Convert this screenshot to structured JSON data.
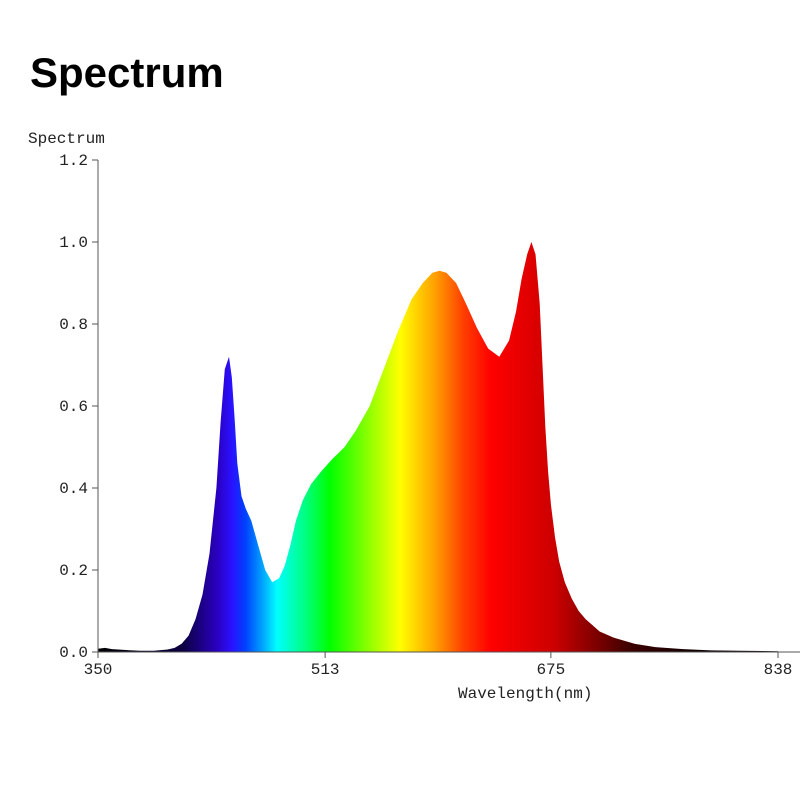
{
  "page": {
    "title": "Spectrum"
  },
  "chart_data": {
    "type": "area",
    "ylabel": "Spectrum",
    "xlabel": "Wavelength(nm)",
    "xlim": [
      350,
      838
    ],
    "ylim": [
      0,
      1.2
    ],
    "x_ticks": [
      "350",
      "513",
      "675",
      "838"
    ],
    "y_ticks": [
      "0.0",
      "0.2",
      "0.4",
      "0.6",
      "0.8",
      "1.0",
      "1.2"
    ],
    "fill": "visible-spectrum gradient",
    "series": [
      {
        "x": [
          350,
          355,
          360,
          370,
          380,
          390,
          400,
          405,
          410,
          415,
          420,
          425,
          430,
          435,
          438,
          441,
          444,
          446,
          448,
          450,
          453,
          456,
          460,
          465,
          470,
          475,
          480,
          484,
          488,
          492,
          497,
          503,
          510,
          518,
          527,
          535,
          545,
          555,
          565,
          575,
          583,
          590,
          595,
          600,
          607,
          614,
          622,
          630,
          638,
          645,
          650,
          654,
          658,
          661,
          664,
          667,
          669,
          671,
          673,
          675,
          678,
          681,
          685,
          690,
          695,
          700,
          705,
          710,
          720,
          735,
          750,
          770,
          790,
          810,
          838
        ],
        "y": [
          0.008,
          0.01,
          0.007,
          0.005,
          0.003,
          0.003,
          0.006,
          0.01,
          0.02,
          0.04,
          0.08,
          0.14,
          0.24,
          0.4,
          0.56,
          0.69,
          0.72,
          0.67,
          0.57,
          0.46,
          0.38,
          0.35,
          0.32,
          0.26,
          0.2,
          0.17,
          0.18,
          0.21,
          0.26,
          0.32,
          0.37,
          0.41,
          0.44,
          0.47,
          0.5,
          0.54,
          0.6,
          0.69,
          0.78,
          0.86,
          0.9,
          0.925,
          0.93,
          0.925,
          0.9,
          0.85,
          0.79,
          0.74,
          0.72,
          0.76,
          0.83,
          0.91,
          0.97,
          1.0,
          0.97,
          0.85,
          0.7,
          0.55,
          0.44,
          0.36,
          0.28,
          0.22,
          0.17,
          0.13,
          0.1,
          0.08,
          0.065,
          0.05,
          0.035,
          0.02,
          0.012,
          0.007,
          0.004,
          0.003,
          0.002
        ]
      }
    ]
  }
}
